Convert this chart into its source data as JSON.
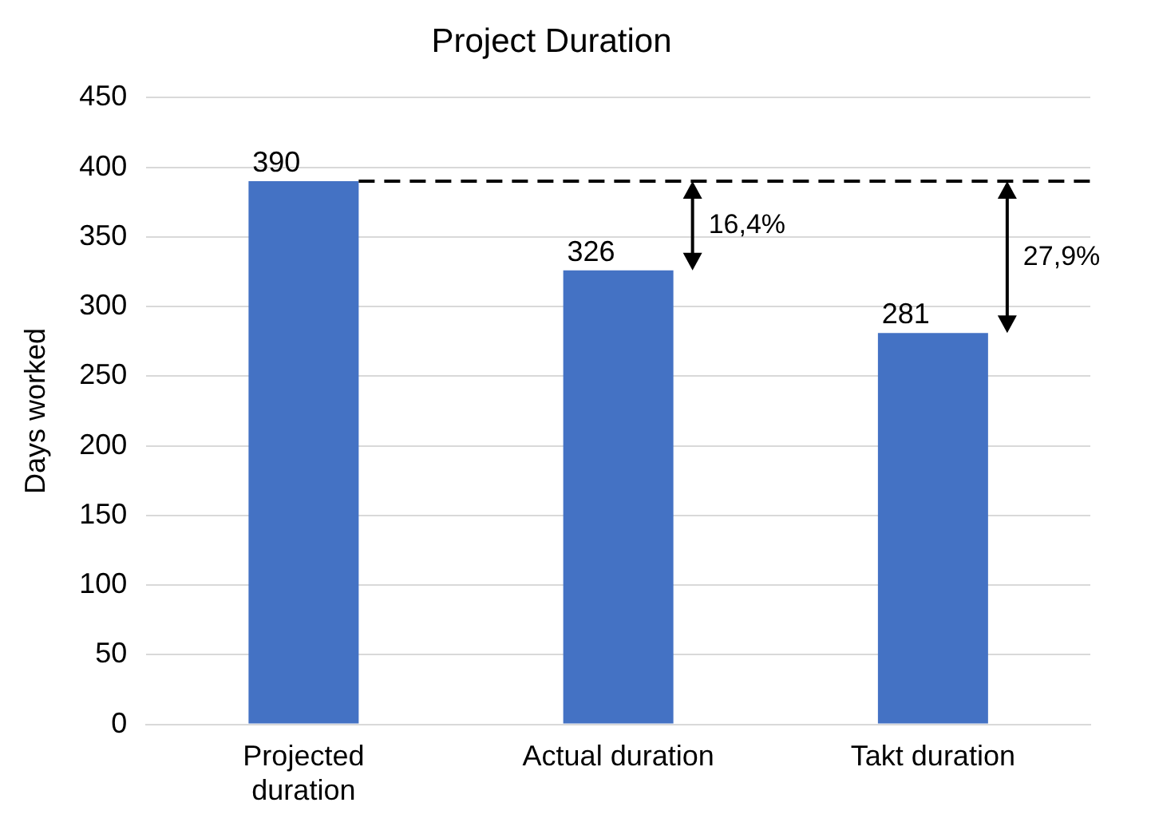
{
  "chart_data": {
    "type": "bar",
    "title": "Project Duration",
    "ylabel": "Days worked",
    "categories": [
      "Projected duration",
      "Actual duration",
      "Takt duration"
    ],
    "values": [
      390,
      326,
      281
    ],
    "color": "#4472c4",
    "data_labels": true,
    "ylim": [
      0,
      450
    ],
    "yticks": [
      0,
      50,
      100,
      150,
      200,
      250,
      300,
      350,
      400,
      450
    ],
    "grid": "y",
    "legend": false,
    "ref_lines": [
      {
        "axis": "y",
        "value": 390,
        "color": "#000000",
        "line_style": "dashed"
      }
    ],
    "annotations": [
      "16,4%",
      "27,9%"
    ]
  }
}
